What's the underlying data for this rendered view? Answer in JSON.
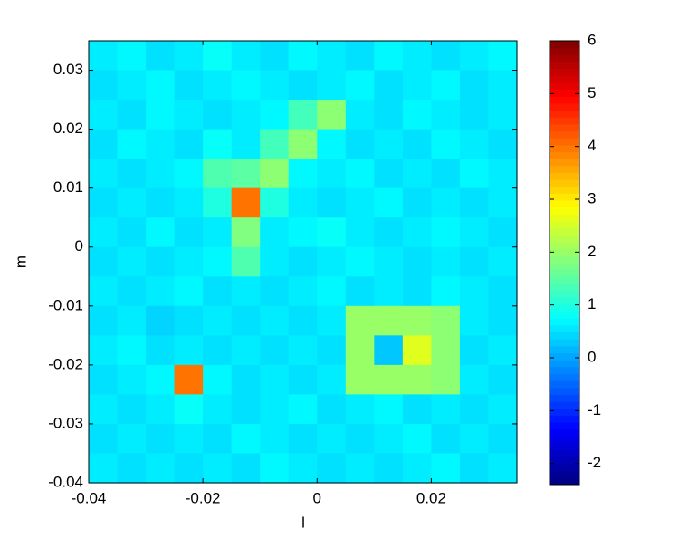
{
  "chart_data": {
    "type": "heatmap",
    "xlabel": "l",
    "ylabel": "m",
    "xlim": [
      -0.04,
      0.035
    ],
    "ylim": [
      -0.04,
      0.035
    ],
    "xticks": [
      -0.04,
      -0.02,
      0,
      0.02
    ],
    "yticks": [
      -0.04,
      -0.03,
      -0.02,
      -0.01,
      0,
      0.01,
      0.02,
      0.03
    ],
    "colormap": "jet",
    "clim": [
      -2.4,
      6
    ],
    "cticks": [
      -2,
      -1,
      0,
      1,
      2,
      3,
      4,
      5,
      6
    ],
    "z": [
      [
        0.6,
        0.7,
        0.5,
        0.6,
        0.8,
        0.6,
        0.5,
        0.7,
        0.6,
        0.5,
        0.7,
        0.6,
        0.5,
        0.6,
        0.7
      ],
      [
        0.5,
        0.6,
        0.7,
        0.5,
        0.6,
        0.7,
        0.6,
        0.5,
        0.6,
        0.7,
        0.5,
        0.6,
        0.7,
        0.5,
        0.6
      ],
      [
        0.6,
        0.5,
        0.7,
        0.6,
        0.5,
        0.6,
        0.7,
        1.3,
        1.9,
        0.6,
        0.5,
        0.7,
        0.6,
        0.5,
        0.6
      ],
      [
        0.5,
        0.7,
        0.6,
        0.5,
        0.8,
        0.6,
        1.3,
        1.9,
        0.7,
        0.5,
        0.6,
        0.5,
        0.7,
        0.6,
        0.5
      ],
      [
        0.6,
        0.5,
        0.6,
        0.7,
        1.4,
        1.5,
        1.9,
        0.7,
        0.6,
        0.7,
        0.5,
        0.6,
        0.5,
        0.7,
        0.6
      ],
      [
        0.5,
        0.6,
        0.5,
        0.6,
        1.0,
        4.0,
        1.0,
        0.6,
        0.5,
        0.6,
        0.7,
        0.5,
        0.6,
        0.5,
        0.6
      ],
      [
        0.6,
        0.5,
        0.7,
        0.5,
        0.6,
        1.8,
        0.6,
        0.7,
        0.8,
        0.6,
        0.5,
        0.6,
        0.7,
        0.6,
        0.5
      ],
      [
        0.5,
        0.6,
        0.5,
        0.6,
        0.7,
        1.4,
        0.6,
        0.5,
        0.6,
        0.7,
        0.6,
        0.5,
        0.6,
        0.5,
        0.6
      ],
      [
        0.6,
        0.5,
        0.6,
        0.7,
        0.5,
        0.6,
        0.5,
        0.6,
        0.7,
        0.5,
        0.6,
        0.5,
        0.7,
        0.6,
        0.5
      ],
      [
        0.5,
        0.6,
        0.4,
        0.5,
        0.6,
        0.5,
        0.6,
        0.5,
        0.6,
        2.0,
        2.0,
        2.0,
        1.9,
        0.6,
        0.5
      ],
      [
        0.6,
        0.7,
        0.5,
        0.6,
        0.5,
        0.6,
        0.5,
        0.6,
        0.5,
        2.0,
        0.3,
        2.6,
        1.9,
        0.5,
        0.6
      ],
      [
        0.5,
        0.6,
        0.7,
        4.0,
        0.7,
        0.5,
        0.6,
        0.5,
        0.6,
        2.0,
        2.0,
        2.0,
        1.9,
        0.6,
        0.5
      ],
      [
        0.6,
        0.5,
        0.6,
        0.8,
        0.6,
        0.5,
        0.6,
        0.7,
        0.5,
        0.6,
        0.7,
        0.5,
        0.6,
        0.5,
        0.6
      ],
      [
        0.5,
        0.6,
        0.5,
        0.6,
        0.5,
        0.7,
        0.6,
        0.5,
        0.6,
        0.5,
        0.6,
        0.7,
        0.5,
        0.6,
        0.5
      ],
      [
        0.6,
        0.5,
        0.6,
        0.5,
        0.6,
        0.5,
        0.7,
        0.6,
        0.5,
        0.6,
        0.5,
        0.6,
        0.7,
        0.5,
        0.6
      ]
    ]
  }
}
